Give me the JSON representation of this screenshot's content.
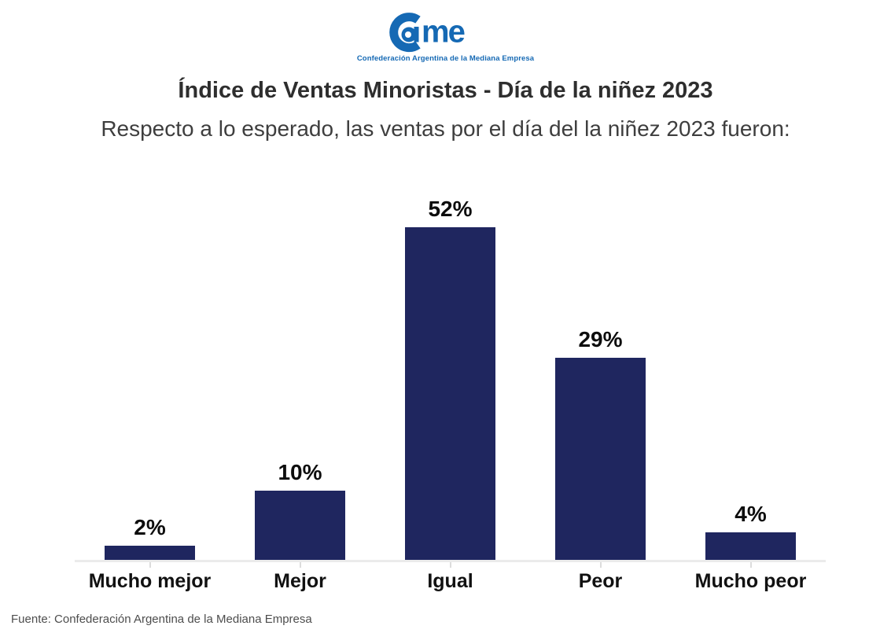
{
  "logo": {
    "text": "Came",
    "tagline": "Confederación Argentina de la Mediana Empresa",
    "color": "#1569b4"
  },
  "title": "Índice de Ventas Minoristas - Día de la niñez 2023",
  "subtitle": "Respecto a lo esperado, las ventas por el día del la niñez 2023 fueron:",
  "source": "Fuente: Confederación Argentina de la Mediana Empresa",
  "chart_data": {
    "type": "bar",
    "title": "Índice de Ventas Minoristas - Día de la niñez 2023",
    "categories": [
      "Mucho mejor",
      "Mejor",
      "Igual",
      "Peor",
      "Mucho peor"
    ],
    "values": [
      2,
      10,
      52,
      29,
      4
    ],
    "value_labels": [
      "2%",
      "10%",
      "52%",
      "29%",
      "4%"
    ],
    "xlabel": "",
    "ylabel": "",
    "ylim": [
      0,
      52
    ],
    "bar_color": "#1f265f",
    "grid": false,
    "legend": false,
    "data_labels": true
  }
}
